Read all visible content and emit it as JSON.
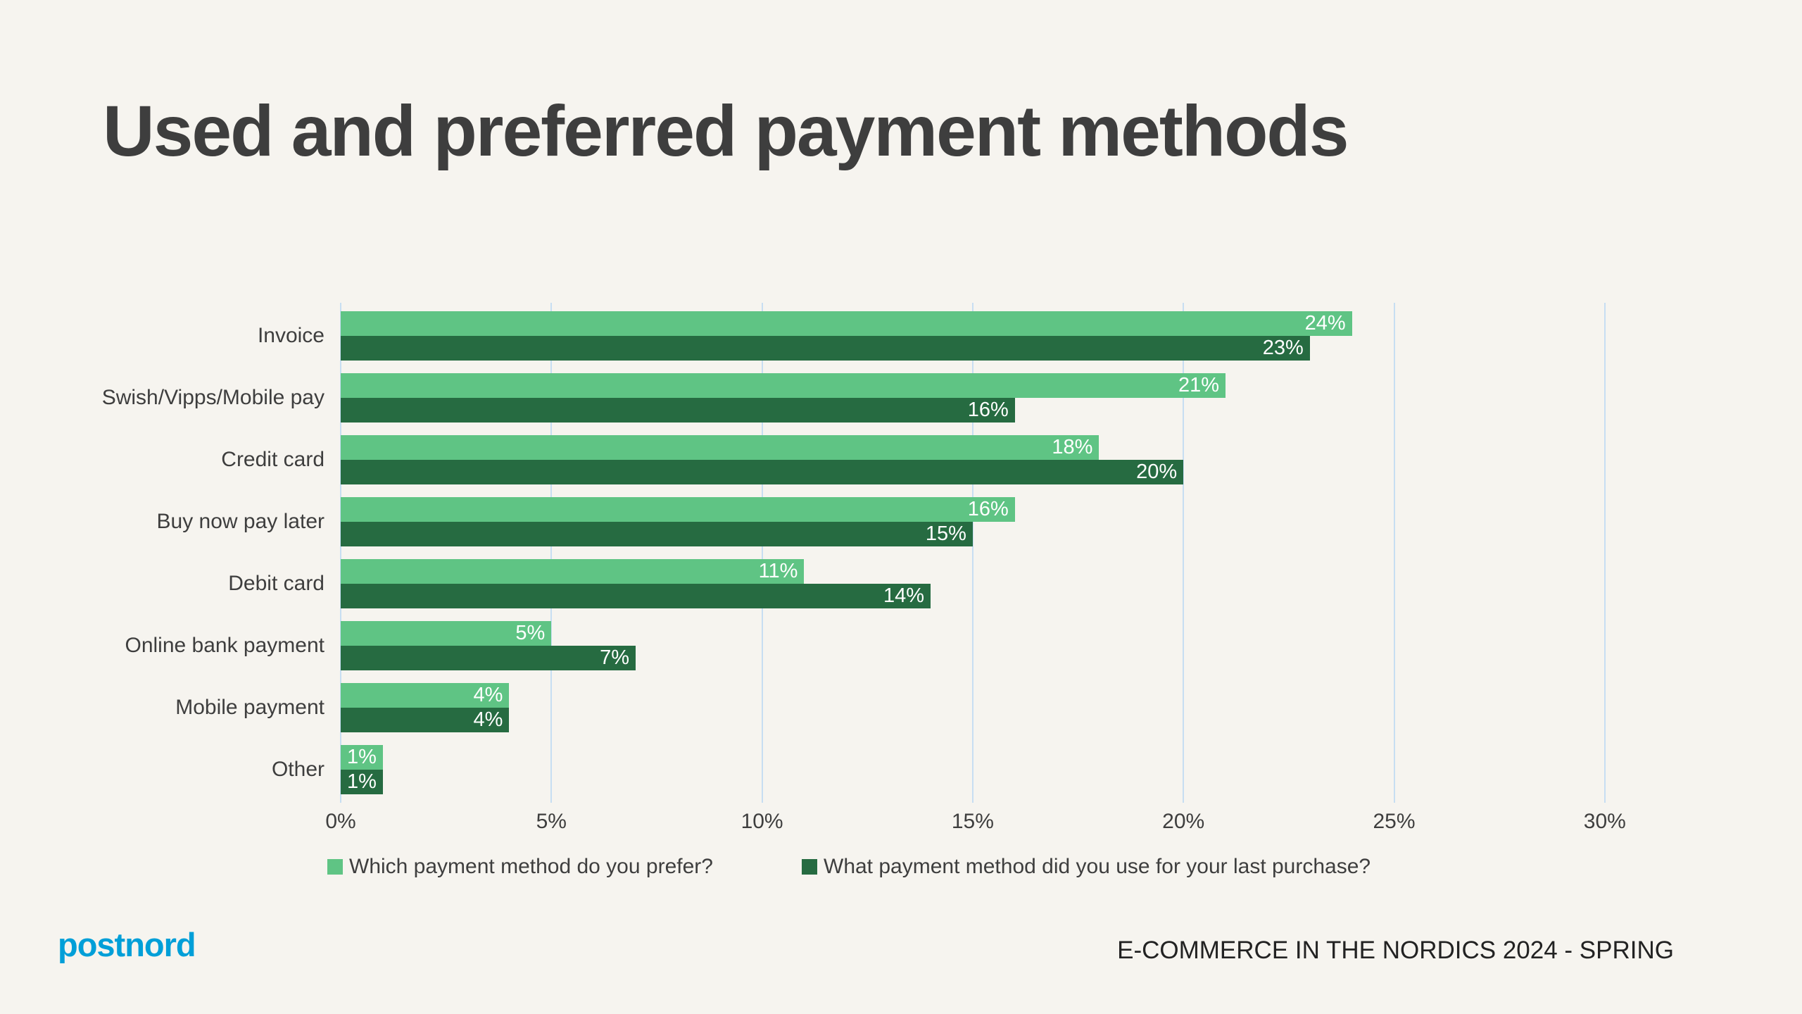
{
  "page": {
    "title": "Used and preferred payment methods",
    "background_color": "#F6F4EF",
    "title_color": "#3E3E3E"
  },
  "footer": {
    "logo_text": "postnord",
    "logo_color": "#009FD8",
    "source_label": "E-COMMERCE IN THE NORDICS 2024 - SPRING"
  },
  "chart_data": {
    "type": "bar",
    "orientation": "horizontal",
    "title": "Used and preferred payment methods",
    "categories": [
      "Invoice",
      "Swish/Vipps/Mobile pay",
      "Credit card",
      "Buy now pay later",
      "Debit card",
      "Online bank payment",
      "Mobile payment",
      "Other"
    ],
    "series": [
      {
        "name": "Which payment method do you prefer?",
        "color": "#5FC484",
        "values": [
          24,
          21,
          18,
          16,
          11,
          5,
          4,
          1
        ]
      },
      {
        "name": "What payment method did you use for your last purchase?",
        "color": "#266B41",
        "values": [
          23,
          16,
          20,
          15,
          14,
          7,
          4,
          1
        ]
      }
    ],
    "value_suffix": "%",
    "xlabel": "",
    "ylabel": "",
    "xlim": [
      0,
      30
    ],
    "x_tick_values": [
      0,
      5,
      10,
      15,
      20,
      25,
      30
    ],
    "x_tick_labels": [
      "0%",
      "5%",
      "10%",
      "15%",
      "20%",
      "25%",
      "30%"
    ],
    "grid": "vertical",
    "gridline_color": "#C7DEF2",
    "legend_position": "bottom",
    "bar_label_color": "#FFFFFF",
    "text_color": "#3E3E3E"
  }
}
